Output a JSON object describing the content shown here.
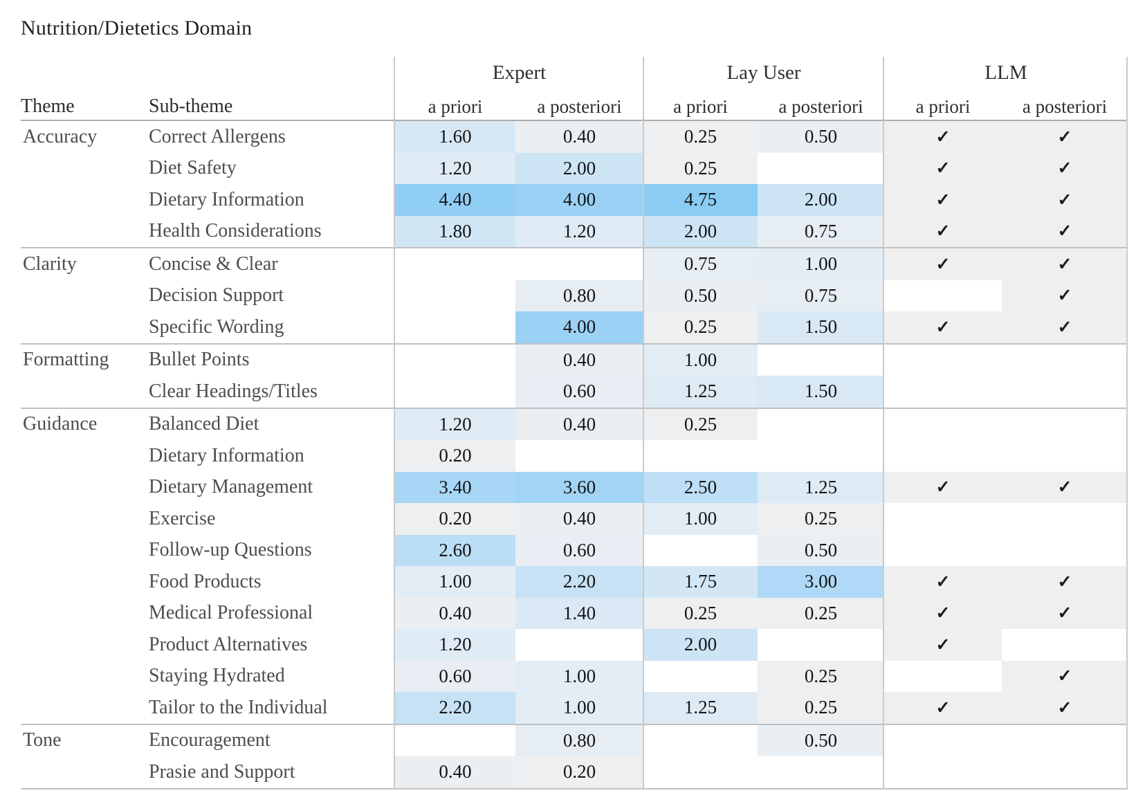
{
  "title": "Nutrition/Dietetics Domain",
  "table": {
    "col_headers": {
      "theme": "Theme",
      "subtheme": "Sub-theme"
    },
    "groups_header": [
      {
        "label": "Expert",
        "sub": [
          "a priori",
          "a posteriori"
        ]
      },
      {
        "label": "Lay User",
        "sub": [
          "a priori",
          "a posteriori"
        ]
      },
      {
        "label": "LLM",
        "sub": [
          "a priori",
          "a posteriori"
        ]
      }
    ],
    "check_glyph": "✓",
    "themes": [
      {
        "theme": "Accuracy",
        "rows": [
          {
            "subtheme": "Correct Allergens",
            "values": [
              1.6,
              0.4,
              0.25,
              0.5
            ],
            "llm": [
              true,
              true
            ]
          },
          {
            "subtheme": "Diet Safety",
            "values": [
              1.2,
              2.0,
              0.25,
              null
            ],
            "llm": [
              true,
              true
            ]
          },
          {
            "subtheme": "Dietary Information",
            "values": [
              4.4,
              4.0,
              4.75,
              2.0
            ],
            "llm": [
              true,
              true
            ]
          },
          {
            "subtheme": "Health Considerations",
            "values": [
              1.8,
              1.2,
              2.0,
              0.75
            ],
            "llm": [
              true,
              true
            ]
          }
        ]
      },
      {
        "theme": "Clarity",
        "rows": [
          {
            "subtheme": "Concise & Clear",
            "values": [
              null,
              null,
              0.75,
              1.0
            ],
            "llm": [
              true,
              true
            ]
          },
          {
            "subtheme": "Decision Support",
            "values": [
              null,
              0.8,
              0.5,
              0.75
            ],
            "llm": [
              false,
              true
            ]
          },
          {
            "subtheme": "Specific Wording",
            "values": [
              null,
              4.0,
              0.25,
              1.5
            ],
            "llm": [
              true,
              true
            ]
          }
        ]
      },
      {
        "theme": "Formatting",
        "rows": [
          {
            "subtheme": "Bullet Points",
            "values": [
              null,
              0.4,
              1.0,
              null
            ],
            "llm": [
              false,
              false
            ]
          },
          {
            "subtheme": "Clear Headings/Titles",
            "values": [
              null,
              0.6,
              1.25,
              1.5
            ],
            "llm": [
              false,
              false
            ]
          }
        ]
      },
      {
        "theme": "Guidance",
        "rows": [
          {
            "subtheme": "Balanced Diet",
            "values": [
              1.2,
              0.4,
              0.25,
              null
            ],
            "llm": [
              false,
              false
            ]
          },
          {
            "subtheme": "Dietary Information",
            "values": [
              0.2,
              null,
              null,
              null
            ],
            "llm": [
              false,
              false
            ]
          },
          {
            "subtheme": "Dietary Management",
            "values": [
              3.4,
              3.6,
              2.5,
              1.25
            ],
            "llm": [
              true,
              true
            ]
          },
          {
            "subtheme": "Exercise",
            "values": [
              0.2,
              0.4,
              1.0,
              0.25
            ],
            "llm": [
              false,
              false
            ]
          },
          {
            "subtheme": "Follow-up Questions",
            "values": [
              2.6,
              0.6,
              null,
              0.5
            ],
            "llm": [
              false,
              false
            ]
          },
          {
            "subtheme": "Food Products",
            "values": [
              1.0,
              2.2,
              1.75,
              3.0
            ],
            "llm": [
              true,
              true
            ]
          },
          {
            "subtheme": "Medical Professional",
            "values": [
              0.4,
              1.4,
              0.25,
              0.25
            ],
            "llm": [
              true,
              true
            ]
          },
          {
            "subtheme": "Product Alternatives",
            "values": [
              1.2,
              null,
              2.0,
              null
            ],
            "llm": [
              true,
              false
            ]
          },
          {
            "subtheme": "Staying Hydrated",
            "values": [
              0.6,
              1.0,
              null,
              0.25
            ],
            "llm": [
              false,
              true
            ]
          },
          {
            "subtheme": "Tailor to the Individual",
            "values": [
              2.2,
              1.0,
              1.25,
              0.25
            ],
            "llm": [
              true,
              true
            ]
          }
        ]
      },
      {
        "theme": "Tone",
        "rows": [
          {
            "subtheme": "Encouragement",
            "values": [
              null,
              0.8,
              null,
              0.5
            ],
            "llm": [
              false,
              false
            ]
          },
          {
            "subtheme": "Prasie and Support",
            "values": [
              0.4,
              0.2,
              null,
              null
            ],
            "llm": [
              false,
              false
            ]
          }
        ]
      }
    ]
  },
  "colors": {
    "heat_stops": [
      "#f0f0f0",
      "#e3edf5",
      "#cde4f5",
      "#afd9f6",
      "#9ad1f5",
      "#84caf4"
    ],
    "heat_domain": [
      0,
      5
    ],
    "check_bg": "#efefef",
    "blank_bg": "#ffffff",
    "vertical_rule": "#cacaca",
    "separator_line": "#c0c0c0",
    "header_line": "#ababab",
    "title_text": "#222222",
    "header_text": "#2e2e2e",
    "label_text": "#4d4d4d",
    "value_text": "#141414"
  }
}
